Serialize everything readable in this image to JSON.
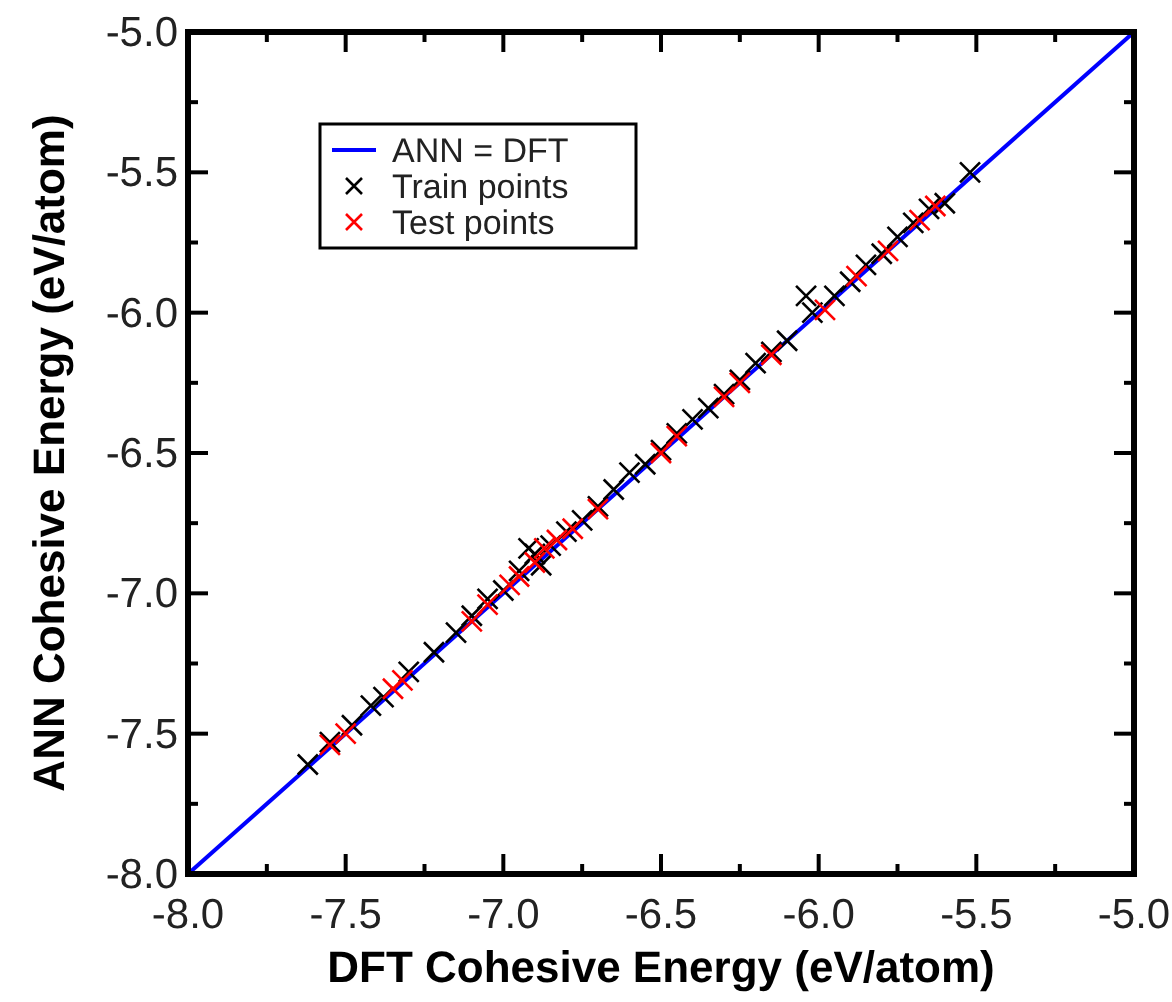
{
  "chart_data": {
    "type": "scatter",
    "xlabel": "DFT Cohesive Energy (eV/atom)",
    "ylabel": "ANN Cohesive Energy (eV/atom)",
    "xlim": [
      -8,
      -5
    ],
    "ylim": [
      -8,
      -5
    ],
    "xticks": [
      {
        "value": -8,
        "label": "-8.0"
      },
      {
        "value": -7.75,
        "label": null
      },
      {
        "value": -7.5,
        "label": "-7.5"
      },
      {
        "value": -7.25,
        "label": null
      },
      {
        "value": -7,
        "label": "-7.0"
      },
      {
        "value": -6.75,
        "label": null
      },
      {
        "value": -6.5,
        "label": "-6.5"
      },
      {
        "value": -6.25,
        "label": null
      },
      {
        "value": -6,
        "label": "-6.0"
      },
      {
        "value": -5.75,
        "label": null
      },
      {
        "value": -5.5,
        "label": "-5.5"
      },
      {
        "value": -5.25,
        "label": null
      },
      {
        "value": -5,
        "label": "-5.0"
      }
    ],
    "yticks": [
      {
        "value": -8,
        "label": "-8.0"
      },
      {
        "value": -7.75,
        "label": null
      },
      {
        "value": -7.5,
        "label": "-7.5"
      },
      {
        "value": -7.25,
        "label": null
      },
      {
        "value": -7,
        "label": "-7.0"
      },
      {
        "value": -6.75,
        "label": null
      },
      {
        "value": -6.5,
        "label": "-6.5"
      },
      {
        "value": -6.25,
        "label": null
      },
      {
        "value": -6,
        "label": "-6.0"
      },
      {
        "value": -5.75,
        "label": null
      },
      {
        "value": -5.5,
        "label": "-5.5"
      },
      {
        "value": -5.25,
        "label": null
      },
      {
        "value": -5,
        "label": "-5.0"
      }
    ],
    "legend": "top left",
    "grid": false,
    "series": [
      {
        "name": "ANN = DFT",
        "type": "line",
        "color": "#0000ff",
        "marker": "none",
        "x": [
          -8,
          -5
        ],
        "values": [
          -8,
          -5
        ]
      },
      {
        "name": "Train points",
        "color": "#000000",
        "marker": "cross",
        "x": [
          -7.62,
          -7.55,
          -7.48,
          -7.42,
          -7.38,
          -7.3,
          -7.22,
          -7.15,
          -7.1,
          -7.05,
          -7,
          -6.95,
          -6.92,
          -6.9,
          -6.88,
          -6.85,
          -6.8,
          -6.75,
          -6.7,
          -6.65,
          -6.6,
          -6.55,
          -6.5,
          -6.45,
          -6.4,
          -6.35,
          -6.3,
          -6.25,
          -6.2,
          -6.15,
          -6.1,
          -6.04,
          -6.02,
          -5.95,
          -5.9,
          -5.85,
          -5.8,
          -5.75,
          -5.7,
          -5.65,
          -5.6,
          -5.52
        ],
        "values": [
          -7.61,
          -7.53,
          -7.47,
          -7.4,
          -7.37,
          -7.28,
          -7.21,
          -7.14,
          -7.08,
          -7.02,
          -6.99,
          -6.92,
          -6.84,
          -6.86,
          -6.9,
          -6.83,
          -6.78,
          -6.74,
          -6.69,
          -6.63,
          -6.57,
          -6.54,
          -6.49,
          -6.43,
          -6.38,
          -6.34,
          -6.29,
          -6.24,
          -6.18,
          -6.14,
          -6.1,
          -5.94,
          -6,
          -5.94,
          -5.89,
          -5.83,
          -5.79,
          -5.73,
          -5.68,
          -5.63,
          -5.61,
          -5.5
        ]
      },
      {
        "name": "Test points",
        "color": "#ff0000",
        "marker": "cross",
        "x": [
          -7.55,
          -7.5,
          -7.35,
          -7.32,
          -7.1,
          -7.05,
          -6.98,
          -6.95,
          -6.9,
          -6.87,
          -6.83,
          -6.78,
          -6.7,
          -6.5,
          -6.45,
          -6.3,
          -6.25,
          -6.15,
          -5.98,
          -5.88,
          -5.78,
          -5.68,
          -5.63
        ],
        "values": [
          -7.54,
          -7.5,
          -7.34,
          -7.31,
          -7.1,
          -7.04,
          -6.97,
          -6.94,
          -6.89,
          -6.84,
          -6.81,
          -6.77,
          -6.7,
          -6.5,
          -6.44,
          -6.3,
          -6.25,
          -6.15,
          -5.99,
          -5.87,
          -5.78,
          -5.67,
          -5.62
        ]
      }
    ]
  }
}
